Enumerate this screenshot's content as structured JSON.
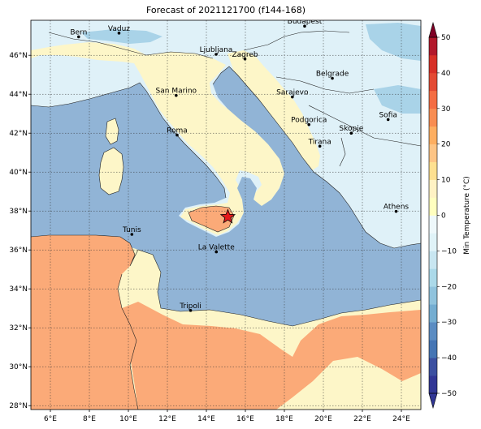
{
  "title": "Forecast of 2021121700 (f144-168)",
  "map": {
    "lon_range": [
      5,
      25
    ],
    "lat_range": [
      27.8,
      47.8
    ],
    "lon_ticks": [
      6,
      8,
      10,
      12,
      14,
      16,
      18,
      20,
      22,
      24
    ],
    "lat_ticks": [
      28,
      30,
      32,
      34,
      36,
      38,
      40,
      42,
      44,
      46
    ],
    "lon_labels": [
      "6°E",
      "8°E",
      "10°E",
      "12°E",
      "14°E",
      "16°E",
      "18°E",
      "20°E",
      "22°E",
      "24°E"
    ],
    "lat_labels": [
      "28°N",
      "30°N",
      "32°N",
      "34°N",
      "36°N",
      "38°N",
      "40°N",
      "42°N",
      "44°N",
      "46°N"
    ],
    "grid": true,
    "star": {
      "lon": 15.1,
      "lat": 37.7,
      "color": "#e41a1c"
    }
  },
  "cities": [
    {
      "name": "Bern",
      "lon": 7.45,
      "lat": 46.95
    },
    {
      "name": "Vaduz",
      "lon": 9.52,
      "lat": 47.14
    },
    {
      "name": "Budapest",
      "lon": 19.04,
      "lat": 47.5
    },
    {
      "name": "Ljubljana",
      "lon": 14.5,
      "lat": 46.05
    },
    {
      "name": "Zagreb",
      "lon": 15.98,
      "lat": 45.81
    },
    {
      "name": "Belgrade",
      "lon": 20.46,
      "lat": 44.82
    },
    {
      "name": "San Marino",
      "lon": 12.45,
      "lat": 43.94
    },
    {
      "name": "Sarajevo",
      "lon": 18.41,
      "lat": 43.86
    },
    {
      "name": "Sofia",
      "lon": 23.32,
      "lat": 42.7
    },
    {
      "name": "Podgorica",
      "lon": 19.26,
      "lat": 42.44
    },
    {
      "name": "Skopje",
      "lon": 21.43,
      "lat": 42.0
    },
    {
      "name": "Roma",
      "lon": 12.5,
      "lat": 41.9
    },
    {
      "name": "Tirana",
      "lon": 19.82,
      "lat": 41.33
    },
    {
      "name": "Athens",
      "lon": 23.73,
      "lat": 37.98
    },
    {
      "name": "Tunis",
      "lon": 10.18,
      "lat": 36.8
    },
    {
      "name": "La Valette",
      "lon": 14.51,
      "lat": 35.9
    },
    {
      "name": "Tripoli",
      "lon": 13.19,
      "lat": 32.89
    }
  ],
  "colorbar": {
    "label": "Min Temperature (°C)",
    "levels": [
      -50,
      -45,
      -40,
      -35,
      -30,
      -25,
      -20,
      -15,
      -10,
      -5,
      0,
      5,
      10,
      15,
      20,
      25,
      30,
      35,
      40,
      45,
      50
    ],
    "colors": [
      "#313695",
      "#3b4fa0",
      "#4575b4",
      "#5b8cc2",
      "#74add1",
      "#90c3dd",
      "#abd9e9",
      "#c8e6f1",
      "#e0f3f8",
      "#eef8fb",
      "#ffffbf",
      "#fff2c4",
      "#fee090",
      "#fdc485",
      "#fdae61",
      "#f88d52",
      "#f46d43",
      "#e34a33",
      "#d73027",
      "#b2182b",
      "#800026"
    ],
    "tick_values": [
      -50,
      -40,
      -30,
      -20,
      -10,
      0,
      10,
      20,
      30,
      40,
      50
    ],
    "tick_labels": [
      "−50",
      "−40",
      "−30",
      "−20",
      "−10",
      "0",
      "10",
      "20",
      "30",
      "40",
      "50"
    ],
    "extend": "both"
  },
  "regions": {
    "sea_color": "#91b4d6",
    "cool_land_color": "#dff1f8",
    "mild_land_color": "#fdf6c8",
    "warm_land_color": "#fbaa78",
    "cold_patch_color": "#a9d3e8"
  }
}
